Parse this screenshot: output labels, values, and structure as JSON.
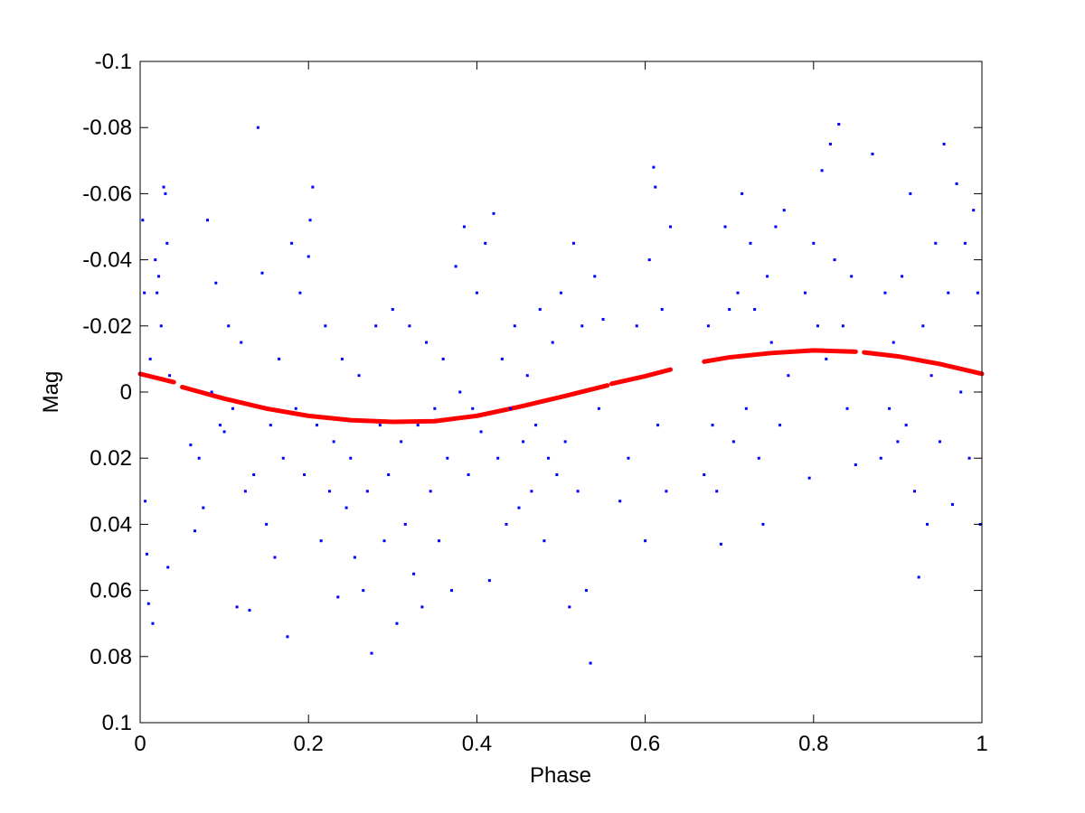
{
  "chart_data": {
    "type": "scatter",
    "title": "",
    "xlabel": "Phase",
    "ylabel": "Mag",
    "xlim": [
      0,
      1
    ],
    "ylim": [
      -0.1,
      0.1
    ],
    "y_reversed": true,
    "grid": false,
    "xticks": [
      "0",
      "0.2",
      "0.4",
      "0.6",
      "0.8",
      "1"
    ],
    "xtick_values": [
      0,
      0.2,
      0.4,
      0.6,
      0.8,
      1
    ],
    "yticks": [
      "-0.1",
      "-0.08",
      "-0.06",
      "-0.04",
      "-0.02",
      "0",
      "0.02",
      "0.04",
      "0.06",
      "0.08",
      "0.1"
    ],
    "ytick_values": [
      -0.1,
      -0.08,
      -0.06,
      -0.04,
      -0.02,
      0,
      0.02,
      0.04,
      0.06,
      0.08,
      0.1
    ],
    "series": [
      {
        "name": "observations",
        "color": "#0000ff",
        "marker": "dot",
        "points": [
          [
            0.003,
            -0.052
          ],
          [
            0.005,
            -0.03
          ],
          [
            0.006,
            0.033
          ],
          [
            0.008,
            0.049
          ],
          [
            0.01,
            0.064
          ],
          [
            0.012,
            -0.01
          ],
          [
            0.015,
            0.07
          ],
          [
            0.018,
            -0.04
          ],
          [
            0.02,
            -0.03
          ],
          [
            0.022,
            -0.035
          ],
          [
            0.025,
            -0.02
          ],
          [
            0.028,
            -0.062
          ],
          [
            0.03,
            -0.06
          ],
          [
            0.032,
            -0.045
          ],
          [
            0.033,
            0.053
          ],
          [
            0.035,
            -0.005
          ],
          [
            0.06,
            0.016
          ],
          [
            0.065,
            0.042
          ],
          [
            0.07,
            0.02
          ],
          [
            0.075,
            0.035
          ],
          [
            0.08,
            -0.052
          ],
          [
            0.085,
            0.0
          ],
          [
            0.09,
            -0.033
          ],
          [
            0.095,
            0.01
          ],
          [
            0.1,
            0.012
          ],
          [
            0.105,
            -0.02
          ],
          [
            0.11,
            0.005
          ],
          [
            0.115,
            0.065
          ],
          [
            0.12,
            -0.015
          ],
          [
            0.125,
            0.03
          ],
          [
            0.13,
            0.066
          ],
          [
            0.135,
            0.025
          ],
          [
            0.14,
            -0.08
          ],
          [
            0.145,
            -0.036
          ],
          [
            0.15,
            0.04
          ],
          [
            0.155,
            0.01
          ],
          [
            0.16,
            0.05
          ],
          [
            0.165,
            -0.01
          ],
          [
            0.17,
            0.02
          ],
          [
            0.175,
            0.074
          ],
          [
            0.18,
            -0.045
          ],
          [
            0.185,
            0.005
          ],
          [
            0.19,
            -0.03
          ],
          [
            0.195,
            0.025
          ],
          [
            0.2,
            -0.041
          ],
          [
            0.202,
            -0.052
          ],
          [
            0.205,
            -0.062
          ],
          [
            0.21,
            0.01
          ],
          [
            0.215,
            0.045
          ],
          [
            0.22,
            -0.02
          ],
          [
            0.225,
            0.03
          ],
          [
            0.23,
            0.015
          ],
          [
            0.235,
            0.062
          ],
          [
            0.24,
            -0.01
          ],
          [
            0.245,
            0.035
          ],
          [
            0.25,
            0.02
          ],
          [
            0.255,
            0.05
          ],
          [
            0.26,
            -0.005
          ],
          [
            0.265,
            0.06
          ],
          [
            0.27,
            0.03
          ],
          [
            0.275,
            0.079
          ],
          [
            0.28,
            -0.02
          ],
          [
            0.285,
            0.01
          ],
          [
            0.29,
            0.045
          ],
          [
            0.295,
            0.025
          ],
          [
            0.3,
            -0.025
          ],
          [
            0.305,
            0.07
          ],
          [
            0.31,
            0.015
          ],
          [
            0.315,
            0.04
          ],
          [
            0.32,
            -0.02
          ],
          [
            0.325,
            0.055
          ],
          [
            0.33,
            0.01
          ],
          [
            0.335,
            0.065
          ],
          [
            0.34,
            -0.015
          ],
          [
            0.345,
            0.03
          ],
          [
            0.35,
            0.005
          ],
          [
            0.355,
            0.045
          ],
          [
            0.36,
            -0.01
          ],
          [
            0.365,
            0.02
          ],
          [
            0.37,
            0.06
          ],
          [
            0.375,
            -0.038
          ],
          [
            0.38,
            0.0
          ],
          [
            0.385,
            -0.05
          ],
          [
            0.39,
            0.025
          ],
          [
            0.395,
            0.005
          ],
          [
            0.4,
            -0.03
          ],
          [
            0.405,
            0.012
          ],
          [
            0.41,
            -0.045
          ],
          [
            0.415,
            0.057
          ],
          [
            0.42,
            -0.054
          ],
          [
            0.425,
            0.02
          ],
          [
            0.43,
            -0.01
          ],
          [
            0.435,
            0.04
          ],
          [
            0.44,
            0.005
          ],
          [
            0.445,
            -0.02
          ],
          [
            0.45,
            0.035
          ],
          [
            0.455,
            0.015
          ],
          [
            0.46,
            -0.005
          ],
          [
            0.465,
            0.03
          ],
          [
            0.47,
            0.01
          ],
          [
            0.475,
            -0.025
          ],
          [
            0.48,
            0.045
          ],
          [
            0.485,
            0.02
          ],
          [
            0.49,
            -0.015
          ],
          [
            0.495,
            0.025
          ],
          [
            0.5,
            -0.03
          ],
          [
            0.505,
            0.015
          ],
          [
            0.51,
            0.065
          ],
          [
            0.515,
            -0.045
          ],
          [
            0.52,
            0.03
          ],
          [
            0.525,
            -0.02
          ],
          [
            0.53,
            0.06
          ],
          [
            0.535,
            0.082
          ],
          [
            0.54,
            -0.035
          ],
          [
            0.545,
            0.005
          ],
          [
            0.55,
            -0.022
          ],
          [
            0.57,
            0.033
          ],
          [
            0.58,
            0.02
          ],
          [
            0.59,
            -0.02
          ],
          [
            0.6,
            0.045
          ],
          [
            0.605,
            -0.04
          ],
          [
            0.61,
            -0.068
          ],
          [
            0.612,
            -0.062
          ],
          [
            0.615,
            0.01
          ],
          [
            0.62,
            -0.025
          ],
          [
            0.625,
            0.03
          ],
          [
            0.63,
            -0.05
          ],
          [
            0.67,
            0.025
          ],
          [
            0.675,
            -0.02
          ],
          [
            0.68,
            0.01
          ],
          [
            0.685,
            0.03
          ],
          [
            0.69,
            0.046
          ],
          [
            0.695,
            -0.05
          ],
          [
            0.7,
            -0.025
          ],
          [
            0.705,
            0.015
          ],
          [
            0.71,
            -0.03
          ],
          [
            0.715,
            -0.06
          ],
          [
            0.72,
            0.005
          ],
          [
            0.725,
            -0.045
          ],
          [
            0.73,
            -0.025
          ],
          [
            0.735,
            0.02
          ],
          [
            0.74,
            0.04
          ],
          [
            0.745,
            -0.035
          ],
          [
            0.75,
            -0.015
          ],
          [
            0.755,
            -0.05
          ],
          [
            0.76,
            0.01
          ],
          [
            0.765,
            -0.055
          ],
          [
            0.77,
            -0.005
          ],
          [
            0.79,
            -0.03
          ],
          [
            0.795,
            0.026
          ],
          [
            0.8,
            -0.045
          ],
          [
            0.805,
            -0.02
          ],
          [
            0.81,
            -0.067
          ],
          [
            0.815,
            -0.01
          ],
          [
            0.82,
            -0.075
          ],
          [
            0.825,
            -0.04
          ],
          [
            0.83,
            -0.081
          ],
          [
            0.835,
            -0.02
          ],
          [
            0.84,
            0.005
          ],
          [
            0.845,
            -0.035
          ],
          [
            0.85,
            0.022
          ],
          [
            0.87,
            -0.072
          ],
          [
            0.88,
            0.02
          ],
          [
            0.885,
            -0.03
          ],
          [
            0.89,
            0.005
          ],
          [
            0.895,
            -0.015
          ],
          [
            0.9,
            0.015
          ],
          [
            0.905,
            -0.035
          ],
          [
            0.91,
            0.01
          ],
          [
            0.915,
            -0.06
          ],
          [
            0.92,
            0.03
          ],
          [
            0.925,
            0.056
          ],
          [
            0.93,
            -0.02
          ],
          [
            0.935,
            0.04
          ],
          [
            0.94,
            -0.005
          ],
          [
            0.945,
            -0.045
          ],
          [
            0.95,
            0.015
          ],
          [
            0.955,
            -0.075
          ],
          [
            0.96,
            -0.03
          ],
          [
            0.965,
            0.034
          ],
          [
            0.97,
            -0.063
          ],
          [
            0.975,
            0.0
          ],
          [
            0.98,
            -0.045
          ],
          [
            0.985,
            0.02
          ],
          [
            0.99,
            -0.055
          ],
          [
            0.995,
            -0.03
          ],
          [
            0.998,
            0.04
          ]
        ]
      },
      {
        "name": "fit",
        "color": "#ff0000",
        "type": "line",
        "segments": [
          [
            [
              0,
              -0.0055
            ],
            [
              0.04,
              -0.003
            ]
          ],
          [
            [
              0.05,
              -0.0015
            ],
            [
              0.1,
              0.002
            ],
            [
              0.15,
              0.005
            ],
            [
              0.2,
              0.0072
            ],
            [
              0.25,
              0.0085
            ],
            [
              0.3,
              0.009
            ],
            [
              0.35,
              0.0088
            ],
            [
              0.4,
              0.0072
            ],
            [
              0.45,
              0.0045
            ],
            [
              0.5,
              0.0015
            ],
            [
              0.555,
              -0.002
            ]
          ],
          [
            [
              0.56,
              -0.0025
            ],
            [
              0.6,
              -0.0048
            ],
            [
              0.63,
              -0.0068
            ]
          ],
          [
            [
              0.67,
              -0.0092
            ],
            [
              0.7,
              -0.0105
            ],
            [
              0.75,
              -0.0118
            ],
            [
              0.8,
              -0.0126
            ],
            [
              0.85,
              -0.0122
            ]
          ],
          [
            [
              0.86,
              -0.012
            ],
            [
              0.9,
              -0.0108
            ],
            [
              0.95,
              -0.0085
            ],
            [
              1,
              -0.0055
            ]
          ]
        ]
      }
    ]
  }
}
